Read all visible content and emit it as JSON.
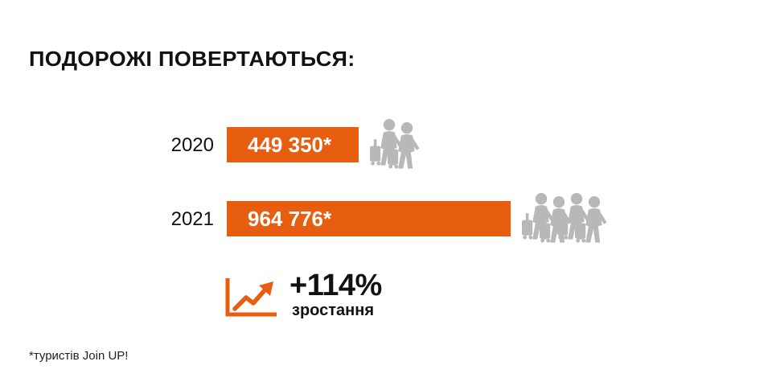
{
  "title": "ПОДОРОЖІ ПОВЕРТАЮТЬСЯ:",
  "colors": {
    "bar": "#e85e10",
    "figure": "#b8b8b8",
    "text": "#111111"
  },
  "chart_data": {
    "type": "bar",
    "orientation": "horizontal",
    "categories": [
      "2020",
      "2021"
    ],
    "values": [
      449350,
      964776
    ],
    "data_labels": [
      "449 350*",
      "964 776*"
    ],
    "title": "ПОДОРОЖІ ПОВЕРТАЮТЬСЯ:",
    "xlabel": "",
    "ylabel": "",
    "grid": false
  },
  "growth": {
    "value": "+114%",
    "label": "зростання",
    "icon": "trend-up-chart-icon"
  },
  "footnote": "*туристів Join UP!",
  "icons": {
    "travelers": "traveler-with-suitcase-icon"
  }
}
